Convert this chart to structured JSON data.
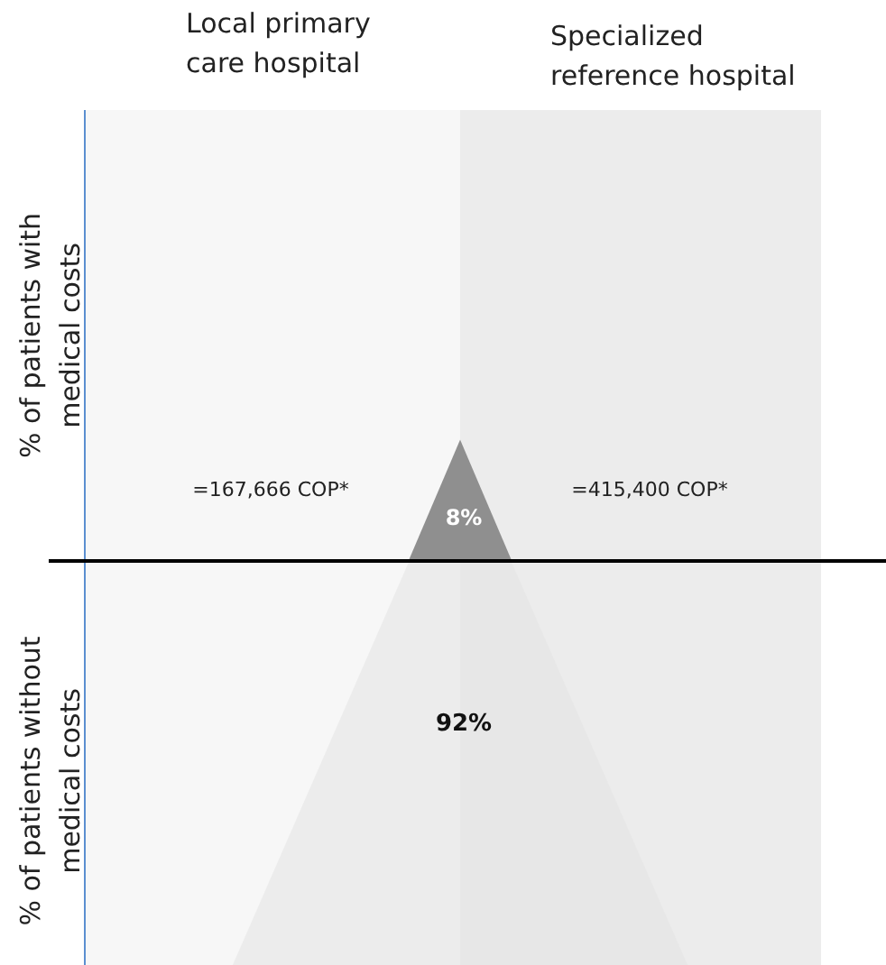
{
  "chart_data": {
    "type": "other",
    "values": [
      8,
      92
    ],
    "value_labels": [
      "8%",
      "92%"
    ],
    "colors": [
      "#8f8f8f",
      "#e4e4e4"
    ],
    "annotations": [
      "Local primary care hospital",
      "Specialized reference hospital",
      "% of patients with medical costs",
      "=167,666 COP*",
      "=415,400 COP*",
      "% of patients without medical costs"
    ]
  }
}
